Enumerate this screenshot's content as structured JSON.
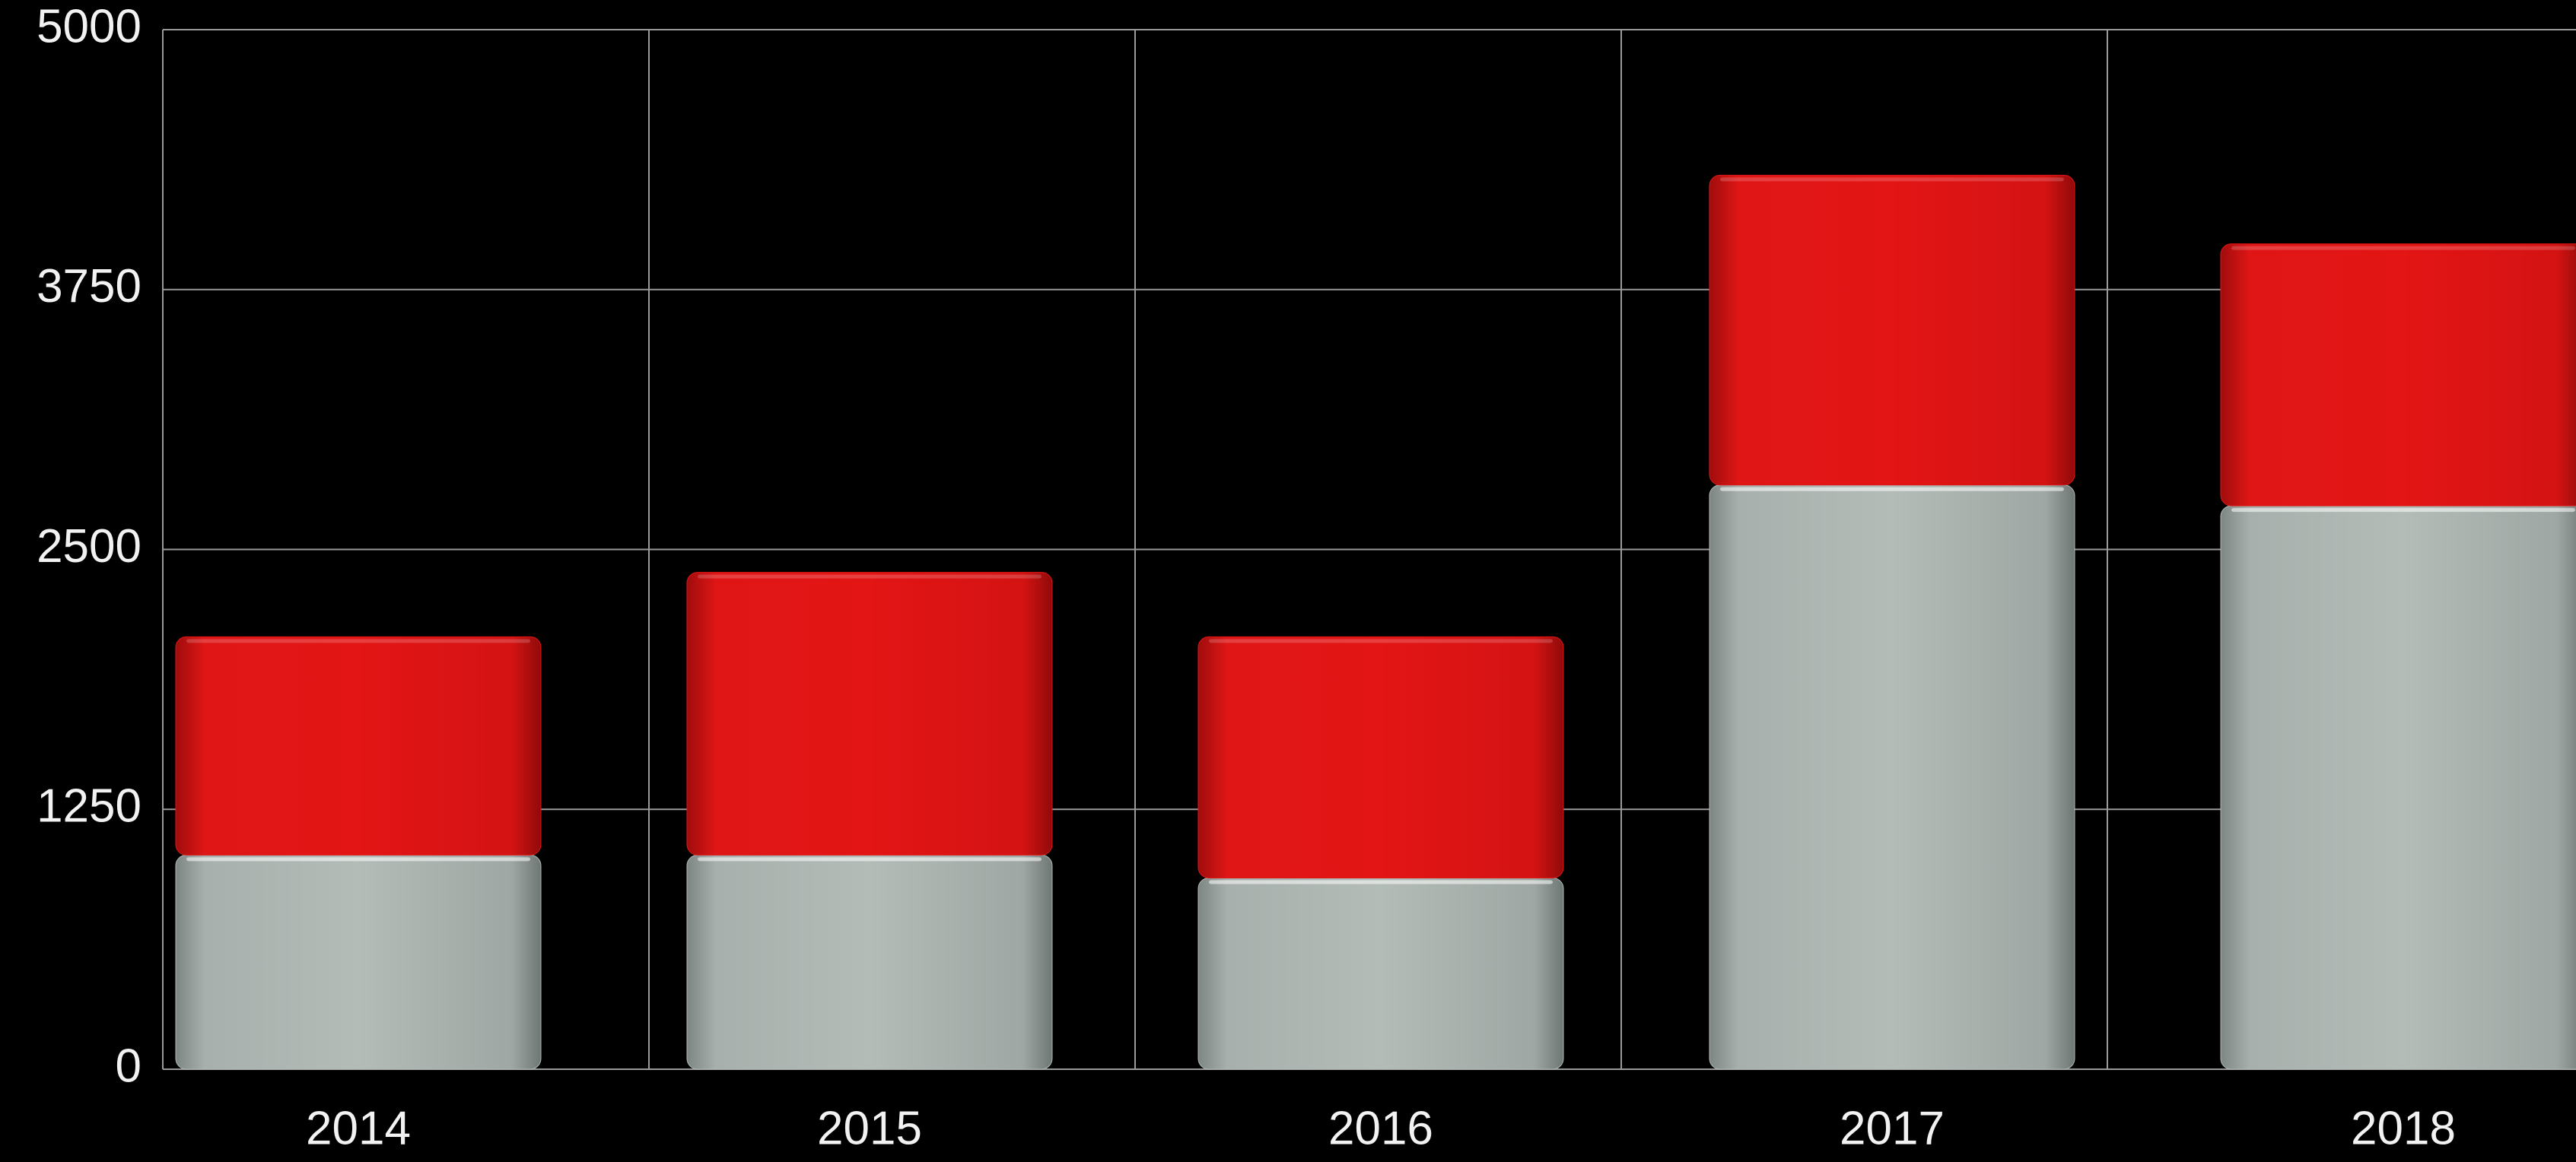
{
  "chart_data": {
    "type": "bar",
    "stacked": true,
    "categories": [
      "2014",
      "2015",
      "2016",
      "2017",
      "2018"
    ],
    "series": [
      {
        "color": "#b0b9b5",
        "values": [
          1030,
          1030,
          920,
          2810,
          2710
        ]
      },
      {
        "color": "#e01515",
        "values": [
          1050,
          1360,
          1160,
          1490,
          1260
        ]
      }
    ],
    "ylim": [
      0,
      5000
    ],
    "yticks": [
      0,
      1250,
      2500,
      3750,
      5000
    ],
    "grid": true
  }
}
